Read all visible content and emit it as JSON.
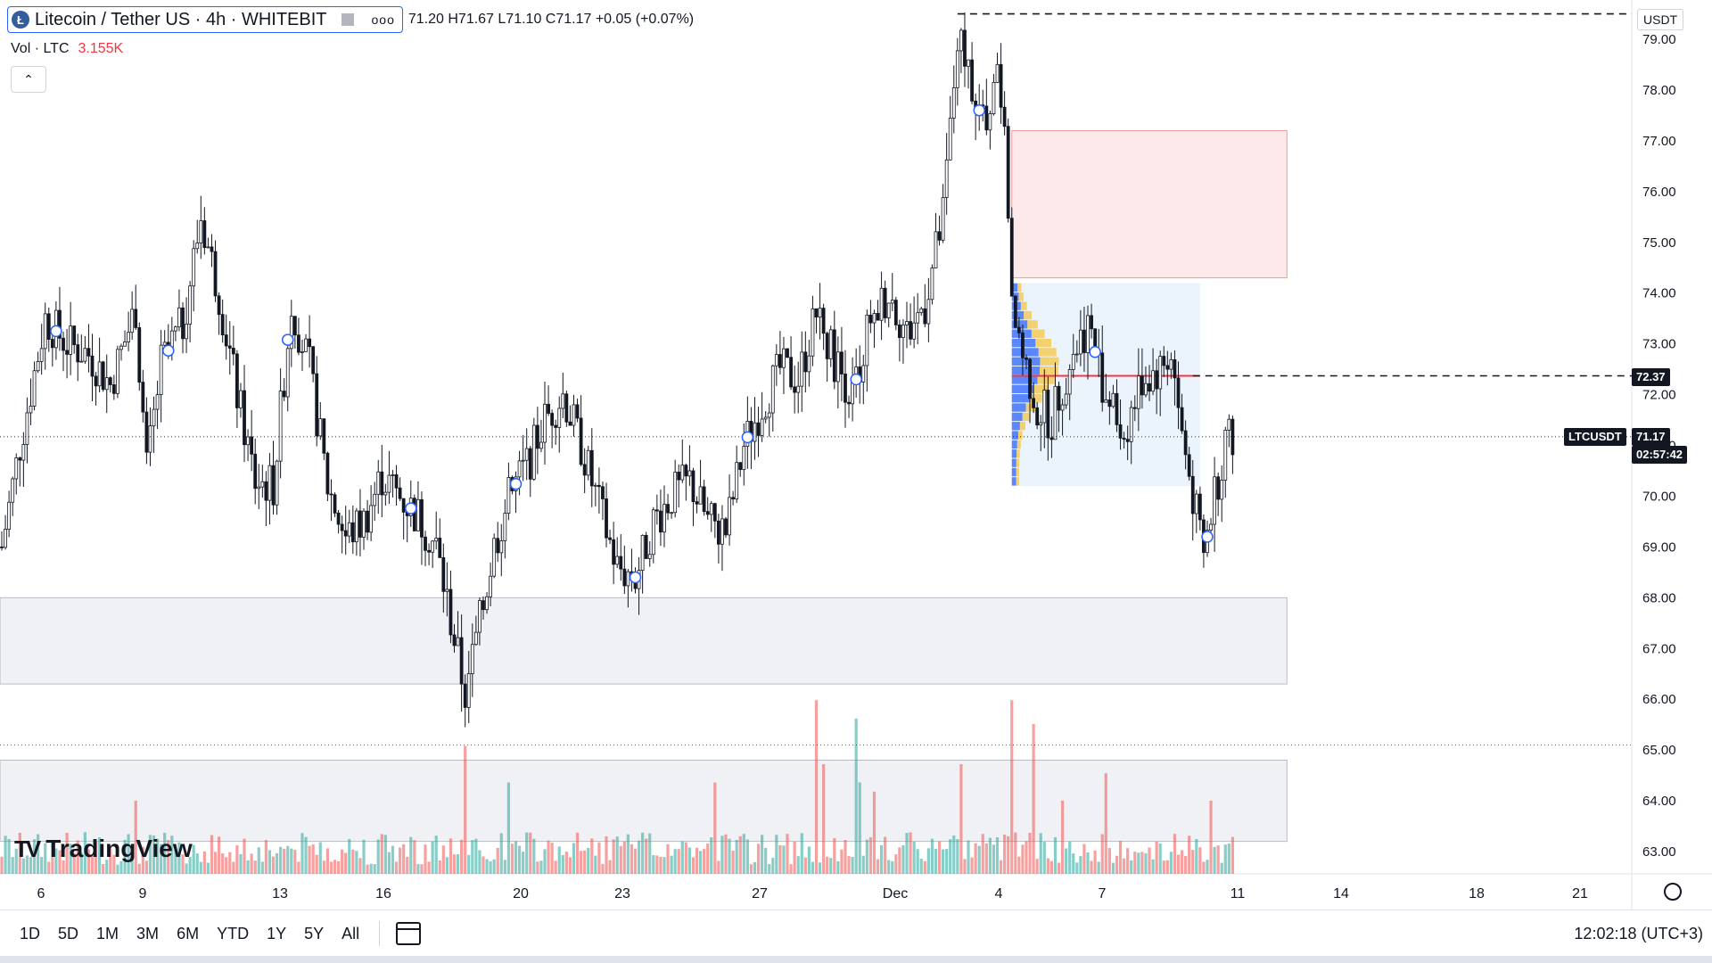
{
  "header": {
    "symbol": "Litecoin / Tether US · 4h · WHITEBIT",
    "coin_letter": "Ł",
    "ohlc": "71.20 H71.67 L71.10 C71.17 +0.05 (+0.07%)",
    "vol_label": "Vol · LTC",
    "vol_value": "3.155K",
    "collapse_glyph": "⌃"
  },
  "price_axis": {
    "currency": "USDT",
    "labels": [
      "79.00",
      "78.00",
      "77.00",
      "76.00",
      "75.00",
      "74.00",
      "73.00",
      "72.00",
      "71.00",
      "70.00",
      "69.00",
      "68.00",
      "67.00",
      "66.00",
      "65.00",
      "64.00",
      "63.00"
    ],
    "level_label": "72.37",
    "ticker": "LTCUSDT",
    "last_price": "71.17",
    "countdown": "02:57:42"
  },
  "time_axis": {
    "labels": [
      "6",
      "9",
      "13",
      "16",
      "20",
      "23",
      "27",
      "Dec",
      "4",
      "7",
      "11",
      "14",
      "18",
      "21"
    ]
  },
  "branding": {
    "logo_text": "TradingView"
  },
  "bottom_toolbar": {
    "ranges": [
      "1D",
      "5D",
      "1M",
      "3M",
      "6M",
      "YTD",
      "1Y",
      "5Y",
      "All"
    ],
    "clock": "12:02:18 (UTC+3)"
  },
  "colors": {
    "up": "#26a69a",
    "down": "#ef5350",
    "candle": "#131722",
    "zone_red_fill": "#fde4e4",
    "zone_red_border": "#f29a9a",
    "zone_gray_fill": "#eceef2",
    "zone_gray_border": "#b9bcc4",
    "profile_blue": "#2962ff",
    "profile_yellow": "#f5c542"
  },
  "chart_data": {
    "type": "candlestick",
    "timeframe": "4h",
    "ylim": [
      62.4,
      79.7
    ],
    "x_ticks": [
      "6",
      "9",
      "13",
      "16",
      "20",
      "23",
      "27",
      "Dec",
      "4",
      "7",
      "11",
      "14",
      "18",
      "21"
    ],
    "anchors": [
      {
        "i": 0,
        "c": 69.0
      },
      {
        "i": 5,
        "c": 71.0
      },
      {
        "i": 12,
        "c": 73.5
      },
      {
        "i": 18,
        "c": 73.0
      },
      {
        "i": 24,
        "c": 72.8
      },
      {
        "i": 30,
        "c": 72.2
      },
      {
        "i": 37,
        "c": 73.7
      },
      {
        "i": 40,
        "c": 70.5
      },
      {
        "i": 44,
        "c": 72.6
      },
      {
        "i": 50,
        "c": 73.4
      },
      {
        "i": 55,
        "c": 75.5
      },
      {
        "i": 60,
        "c": 74.0
      },
      {
        "i": 65,
        "c": 72.0
      },
      {
        "i": 70,
        "c": 70.3
      },
      {
        "i": 75,
        "c": 70.2
      },
      {
        "i": 80,
        "c": 73.8
      },
      {
        "i": 85,
        "c": 72.5
      },
      {
        "i": 90,
        "c": 70.2
      },
      {
        "i": 95,
        "c": 69.2
      },
      {
        "i": 100,
        "c": 69.5
      },
      {
        "i": 105,
        "c": 70.4
      },
      {
        "i": 110,
        "c": 70.0
      },
      {
        "i": 115,
        "c": 69.6
      },
      {
        "i": 120,
        "c": 69.0
      },
      {
        "i": 125,
        "c": 67.2
      },
      {
        "i": 128,
        "c": 66.1
      },
      {
        "i": 132,
        "c": 67.5
      },
      {
        "i": 136,
        "c": 69.0
      },
      {
        "i": 140,
        "c": 70.0
      },
      {
        "i": 145,
        "c": 70.6
      },
      {
        "i": 150,
        "c": 71.5
      },
      {
        "i": 155,
        "c": 72.0
      },
      {
        "i": 160,
        "c": 71.0
      },
      {
        "i": 165,
        "c": 69.8
      },
      {
        "i": 170,
        "c": 68.6
      },
      {
        "i": 175,
        "c": 68.4
      },
      {
        "i": 180,
        "c": 69.5
      },
      {
        "i": 185,
        "c": 70.0
      },
      {
        "i": 190,
        "c": 70.3
      },
      {
        "i": 195,
        "c": 69.5
      },
      {
        "i": 200,
        "c": 69.3
      },
      {
        "i": 205,
        "c": 71.0
      },
      {
        "i": 210,
        "c": 71.8
      },
      {
        "i": 215,
        "c": 72.5
      },
      {
        "i": 220,
        "c": 72.3
      },
      {
        "i": 225,
        "c": 73.6
      },
      {
        "i": 230,
        "c": 72.7
      },
      {
        "i": 235,
        "c": 72.0
      },
      {
        "i": 240,
        "c": 73.5
      },
      {
        "i": 245,
        "c": 74.0
      },
      {
        "i": 250,
        "c": 73.2
      },
      {
        "i": 255,
        "c": 73.8
      },
      {
        "i": 260,
        "c": 75.5
      },
      {
        "i": 264,
        "c": 79.0
      },
      {
        "i": 268,
        "c": 78.2
      },
      {
        "i": 272,
        "c": 77.0
      },
      {
        "i": 274,
        "c": 78.5
      },
      {
        "i": 277,
        "c": 77.5
      },
      {
        "i": 279,
        "c": 74.0
      },
      {
        "i": 282,
        "c": 72.8
      },
      {
        "i": 286,
        "c": 71.8
      },
      {
        "i": 290,
        "c": 71.5
      },
      {
        "i": 295,
        "c": 72.7
      },
      {
        "i": 300,
        "c": 73.4
      },
      {
        "i": 305,
        "c": 72.0
      },
      {
        "i": 310,
        "c": 71.2
      },
      {
        "i": 315,
        "c": 72.3
      },
      {
        "i": 320,
        "c": 72.5
      },
      {
        "i": 323,
        "c": 72.8
      },
      {
        "i": 326,
        "c": 71.2
      },
      {
        "i": 329,
        "c": 70.0
      },
      {
        "i": 332,
        "c": 68.8
      },
      {
        "i": 335,
        "c": 70.0
      },
      {
        "i": 338,
        "c": 71.1
      },
      {
        "i": 340,
        "c": 71.17
      }
    ],
    "volume_spikes": [
      {
        "i": 37,
        "v": 0.4,
        "dir": "down"
      },
      {
        "i": 128,
        "v": 0.7,
        "dir": "down"
      },
      {
        "i": 140,
        "v": 0.5,
        "dir": "up"
      },
      {
        "i": 197,
        "v": 0.5,
        "dir": "down"
      },
      {
        "i": 225,
        "v": 0.95,
        "dir": "down"
      },
      {
        "i": 227,
        "v": 0.6,
        "dir": "down"
      },
      {
        "i": 236,
        "v": 0.85,
        "dir": "up"
      },
      {
        "i": 237,
        "v": 0.5,
        "dir": "up"
      },
      {
        "i": 241,
        "v": 0.45,
        "dir": "down"
      },
      {
        "i": 265,
        "v": 0.6,
        "dir": "down"
      },
      {
        "i": 279,
        "v": 0.95,
        "dir": "down"
      },
      {
        "i": 285,
        "v": 0.82,
        "dir": "down"
      },
      {
        "i": 293,
        "v": 0.4,
        "dir": "down"
      },
      {
        "i": 305,
        "v": 0.55,
        "dir": "down"
      },
      {
        "i": 334,
        "v": 0.4,
        "dir": "down"
      }
    ],
    "zones": [
      {
        "kind": "resistance",
        "y_top": 77.2,
        "y_bottom": 74.3,
        "from_i": 279,
        "to_i": 355
      },
      {
        "kind": "support",
        "y_top": 68.0,
        "y_bottom": 66.3,
        "from_i": -5,
        "to_i": 355
      },
      {
        "kind": "support",
        "y_top": 64.8,
        "y_bottom": 63.2,
        "from_i": -5,
        "to_i": 355
      }
    ],
    "volume_profile_box": {
      "from_i": 279,
      "to_i": 331,
      "y_top": 74.2,
      "y_bottom": 70.2,
      "poc": 72.37
    },
    "levels": [
      {
        "price": 79.5,
        "from_i": 264,
        "style": "dashed"
      },
      {
        "price": 72.37,
        "from_i": 329,
        "style": "dashed"
      }
    ],
    "markers": [
      15,
      46,
      79,
      113,
      142,
      175,
      206,
      236,
      270,
      302,
      333
    ]
  }
}
